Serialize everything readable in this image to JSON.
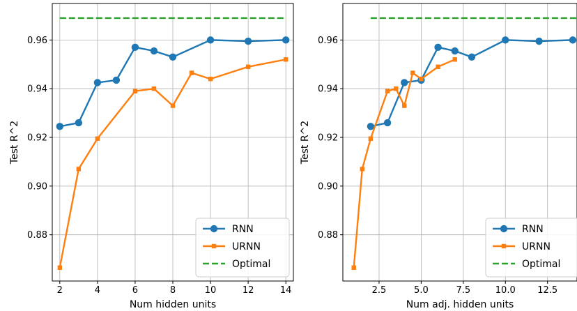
{
  "chart_data": [
    {
      "type": "line",
      "xlabel": "Num hidden units",
      "ylabel": "Test R^2",
      "xlim": [
        1.6,
        14.4
      ],
      "ylim": [
        0.861,
        0.975
      ],
      "xticks": [
        2,
        4,
        6,
        8,
        10,
        12,
        14
      ],
      "xtick_labels": [
        "2",
        "4",
        "6",
        "8",
        "10",
        "12",
        "14"
      ],
      "yticks": [
        0.88,
        0.9,
        0.92,
        0.94,
        0.96
      ],
      "ytick_labels": [
        "0.88",
        "0.90",
        "0.92",
        "0.94",
        "0.96"
      ],
      "grid": true,
      "legend_position": "lower-right",
      "series": [
        {
          "name": "RNN",
          "color": "#1f77b4",
          "marker": "circle",
          "line_style": "solid",
          "x": [
            2,
            3,
            4,
            5,
            6,
            7,
            8,
            10,
            12,
            14
          ],
          "y": [
            0.9245,
            0.926,
            0.9425,
            0.9435,
            0.957,
            0.9555,
            0.953,
            0.96,
            0.9595,
            0.96
          ]
        },
        {
          "name": "URNN",
          "color": "#ff7f0e",
          "marker": "square",
          "line_style": "solid",
          "x": [
            2,
            3,
            4,
            6,
            7,
            8,
            9,
            10,
            12,
            14
          ],
          "y": [
            0.8665,
            0.907,
            0.9195,
            0.939,
            0.94,
            0.933,
            0.9465,
            0.944,
            0.949,
            0.952
          ]
        },
        {
          "name": "Optimal",
          "color": "#2ca02c",
          "marker": "none",
          "line_style": "dashed",
          "x": [
            2,
            14
          ],
          "y": [
            0.969,
            0.969
          ]
        }
      ]
    },
    {
      "type": "line",
      "xlabel": "Num adj. hidden units",
      "ylabel": "Test R^2",
      "xlim": [
        0.35,
        14.25
      ],
      "ylim": [
        0.861,
        0.975
      ],
      "xticks": [
        2.5,
        5.0,
        7.5,
        10.0,
        12.5
      ],
      "xtick_labels": [
        "2.5",
        "5.0",
        "7.5",
        "10.0",
        "12.5"
      ],
      "yticks": [
        0.88,
        0.9,
        0.92,
        0.94,
        0.96
      ],
      "ytick_labels": [
        "0.88",
        "0.90",
        "0.92",
        "0.94",
        "0.96"
      ],
      "grid": true,
      "legend_position": "lower-right",
      "series": [
        {
          "name": "RNN",
          "color": "#1f77b4",
          "marker": "circle",
          "line_style": "solid",
          "x": [
            2,
            3,
            4,
            5,
            6,
            7,
            8,
            10,
            12,
            14
          ],
          "y": [
            0.9245,
            0.926,
            0.9425,
            0.9435,
            0.957,
            0.9555,
            0.953,
            0.96,
            0.9595,
            0.96
          ]
        },
        {
          "name": "URNN",
          "color": "#ff7f0e",
          "marker": "square",
          "line_style": "solid",
          "x": [
            1,
            1.5,
            2,
            3,
            3.5,
            4,
            4.5,
            5,
            6,
            7
          ],
          "y": [
            0.8665,
            0.907,
            0.9195,
            0.939,
            0.94,
            0.933,
            0.9465,
            0.944,
            0.949,
            0.952
          ]
        },
        {
          "name": "Optimal",
          "color": "#2ca02c",
          "marker": "none",
          "line_style": "dashed",
          "x": [
            2,
            14.25
          ],
          "y": [
            0.969,
            0.969
          ]
        }
      ]
    }
  ]
}
